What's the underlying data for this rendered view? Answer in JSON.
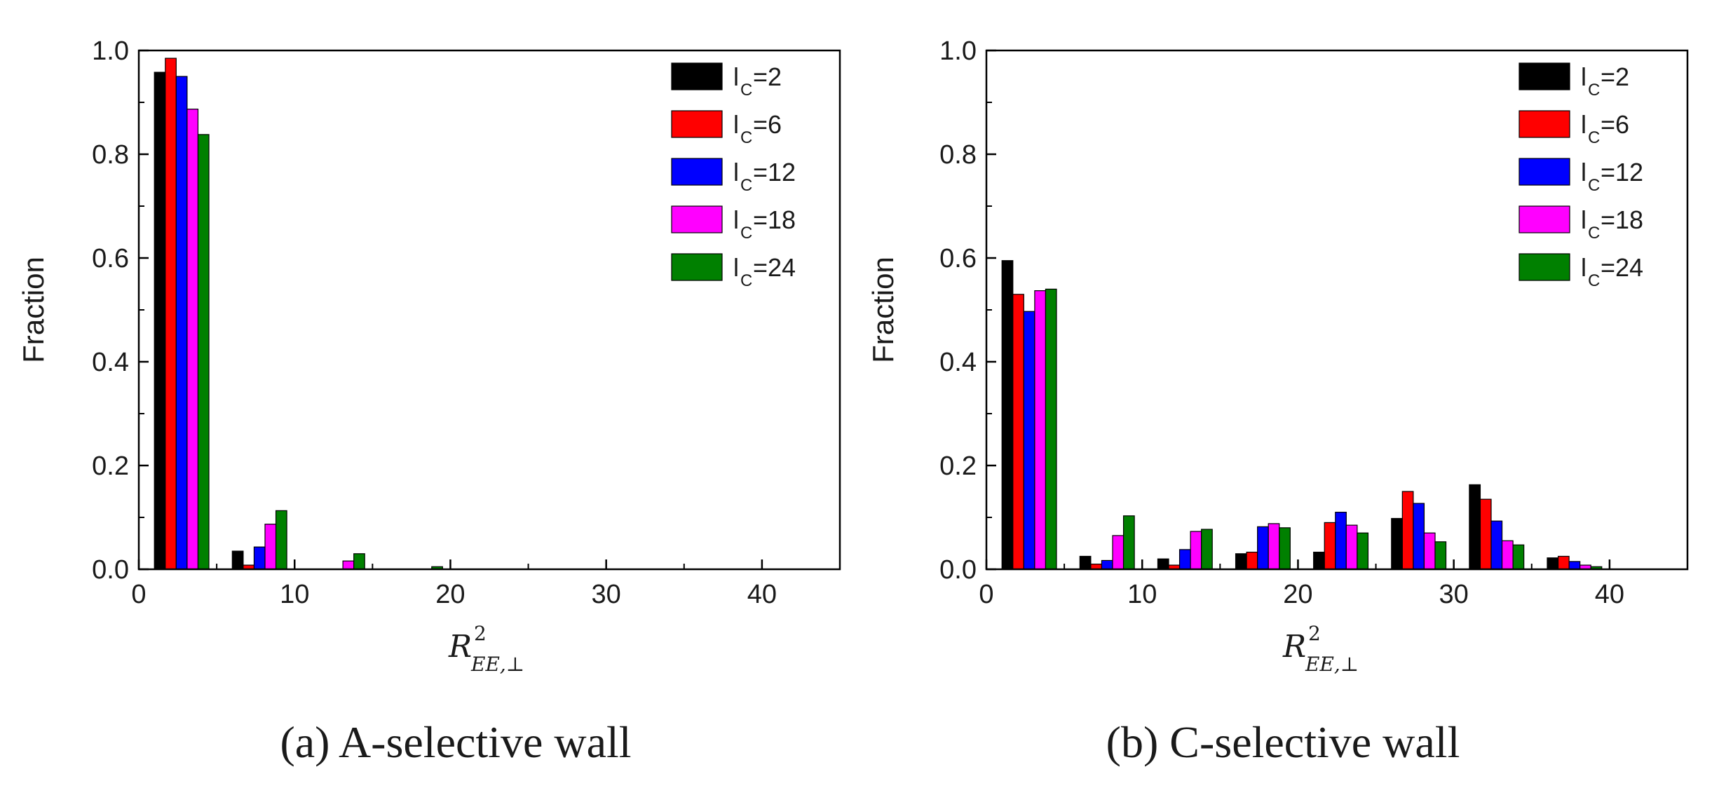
{
  "chart_data": [
    {
      "type": "bar",
      "caption": "(a) A-selective wall",
      "title": "",
      "ylabel": "Fraction",
      "xlabel": {
        "base": "R",
        "sup": "2",
        "sub": "EE,⊥"
      },
      "xlim": [
        0,
        45
      ],
      "ylim": [
        0,
        1.0
      ],
      "xticks": [
        0,
        10,
        20,
        30,
        40
      ],
      "xtick_labels": [
        "0",
        "10",
        "20",
        "30",
        "40"
      ],
      "yticks": [
        0.0,
        0.2,
        0.4,
        0.6,
        0.8,
        1.0
      ],
      "ytick_labels": [
        "0.0",
        "0.2",
        "0.4",
        "0.6",
        "0.8",
        "1.0"
      ],
      "legend_position": "top-right",
      "bin_starts": [
        1,
        6,
        11,
        16
      ],
      "bar_width": 0.7,
      "series": [
        {
          "name": "l",
          "sub": "C",
          "eq": "=2",
          "color": "#000000",
          "values": [
            0.958,
            0.035,
            0.0,
            0.0
          ]
        },
        {
          "name": "l",
          "sub": "C",
          "eq": "=6",
          "color": "#ff0000",
          "values": [
            0.985,
            0.008,
            0.0,
            0.0
          ]
        },
        {
          "name": "l",
          "sub": "C",
          "eq": "=12",
          "color": "#0000ff",
          "values": [
            0.95,
            0.043,
            0.0,
            0.0
          ]
        },
        {
          "name": "l",
          "sub": "C",
          "eq": "=18",
          "color": "#ff00ff",
          "values": [
            0.887,
            0.087,
            0.016,
            0.0
          ]
        },
        {
          "name": "l",
          "sub": "C",
          "eq": "=24",
          "color": "#008000",
          "values": [
            0.838,
            0.113,
            0.03,
            0.005
          ]
        }
      ]
    },
    {
      "type": "bar",
      "caption": "(b) C-selective wall",
      "title": "",
      "ylabel": "Fraction",
      "xlabel": {
        "base": "R",
        "sup": "2",
        "sub": "EE,⊥"
      },
      "xlim": [
        0,
        45
      ],
      "ylim": [
        0,
        1.0
      ],
      "xticks": [
        0,
        10,
        20,
        30,
        40
      ],
      "xtick_labels": [
        "0",
        "10",
        "20",
        "30",
        "40"
      ],
      "yticks": [
        0.0,
        0.2,
        0.4,
        0.6,
        0.8,
        1.0
      ],
      "ytick_labels": [
        "0.0",
        "0.2",
        "0.4",
        "0.6",
        "0.8",
        "1.0"
      ],
      "legend_position": "top-right",
      "bin_starts": [
        1,
        6,
        11,
        16,
        21,
        26,
        31,
        36
      ],
      "bar_width": 0.7,
      "series": [
        {
          "name": "l",
          "sub": "C",
          "eq": "=2",
          "color": "#000000",
          "values": [
            0.595,
            0.025,
            0.02,
            0.03,
            0.033,
            0.098,
            0.163,
            0.022
          ]
        },
        {
          "name": "l",
          "sub": "C",
          "eq": "=6",
          "color": "#ff0000",
          "values": [
            0.53,
            0.01,
            0.008,
            0.033,
            0.09,
            0.15,
            0.135,
            0.025
          ]
        },
        {
          "name": "l",
          "sub": "C",
          "eq": "=12",
          "color": "#0000ff",
          "values": [
            0.497,
            0.017,
            0.038,
            0.082,
            0.11,
            0.127,
            0.093,
            0.015
          ]
        },
        {
          "name": "l",
          "sub": "C",
          "eq": "=18",
          "color": "#ff00ff",
          "values": [
            0.537,
            0.065,
            0.073,
            0.088,
            0.085,
            0.07,
            0.055,
            0.008
          ]
        },
        {
          "name": "l",
          "sub": "C",
          "eq": "=24",
          "color": "#008000",
          "values": [
            0.54,
            0.103,
            0.077,
            0.08,
            0.07,
            0.053,
            0.047,
            0.005
          ]
        }
      ]
    }
  ]
}
